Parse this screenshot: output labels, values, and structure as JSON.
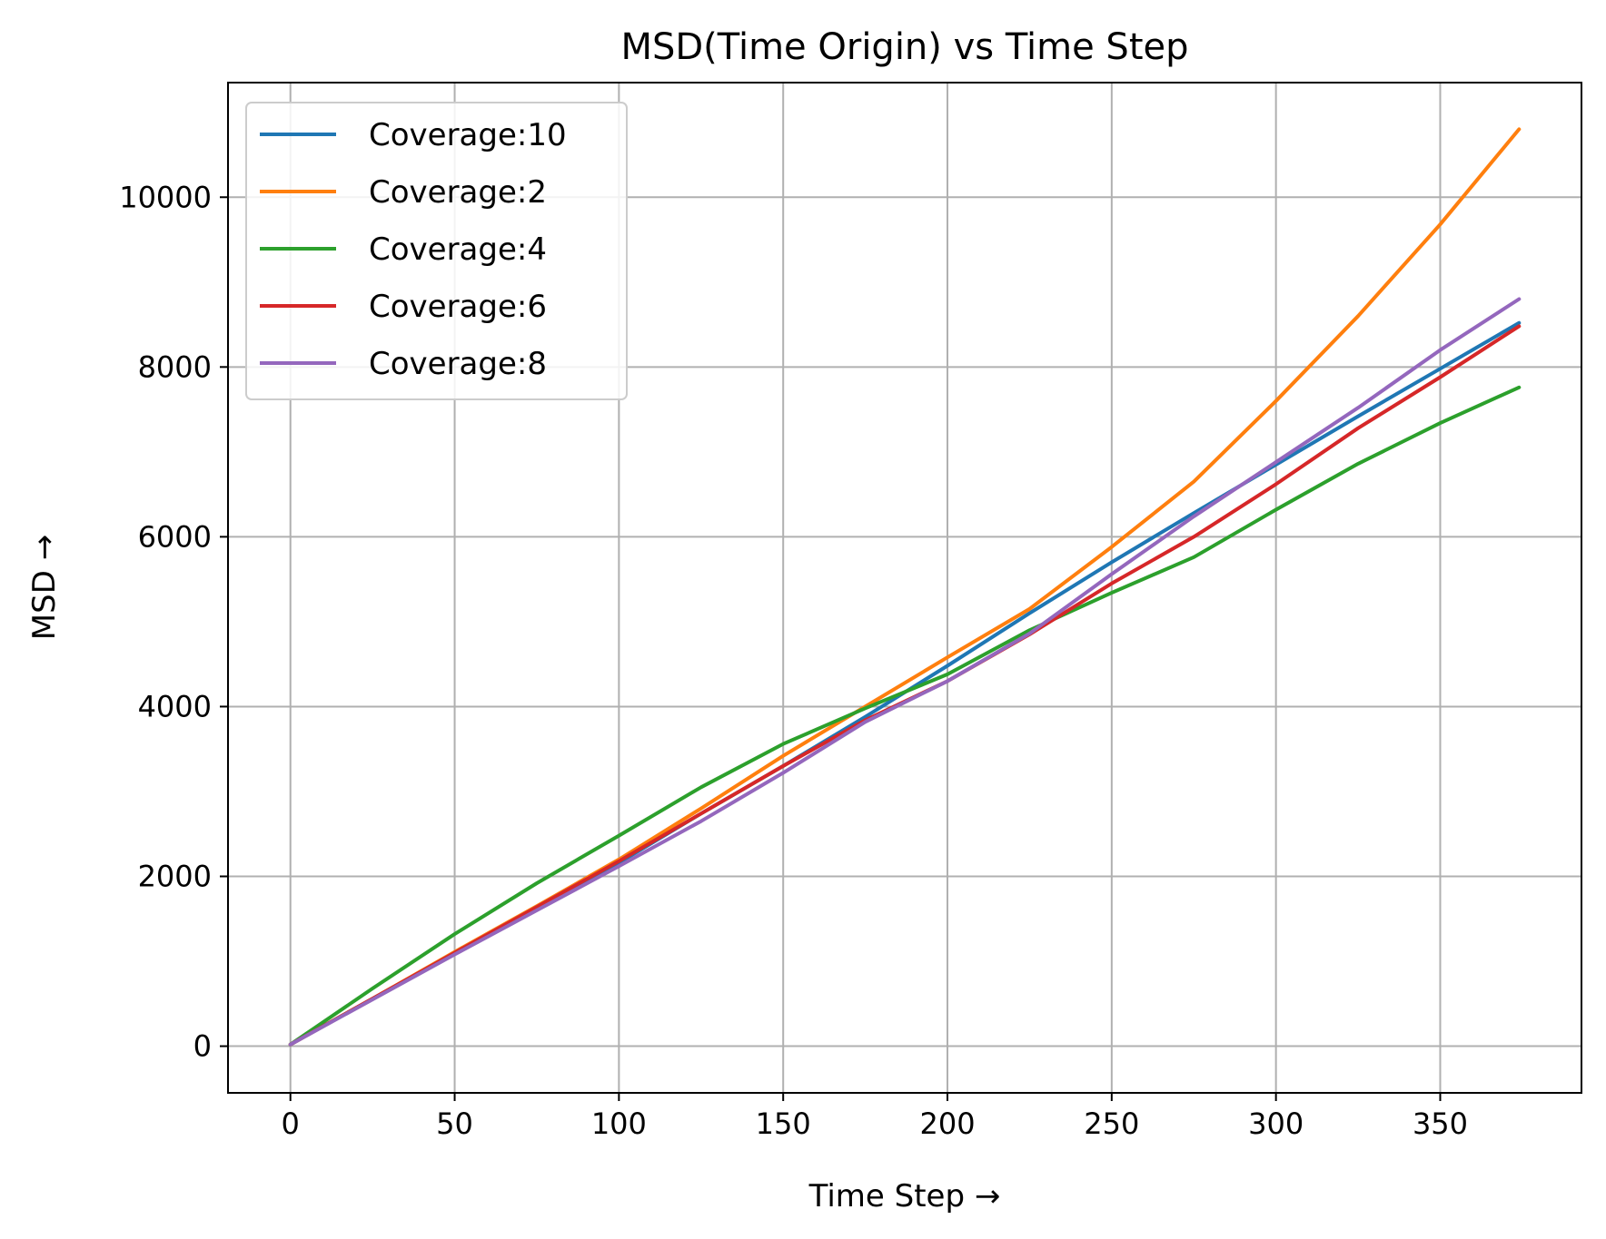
{
  "chart_data": {
    "type": "line",
    "title": "MSD(Time Origin) vs Time Step",
    "xlabel": "Time Step →",
    "ylabel": "MSD →",
    "xlim": [
      -19,
      393
    ],
    "ylim": [
      -550,
      11350
    ],
    "x_ticks": [
      0,
      50,
      100,
      150,
      200,
      250,
      300,
      350
    ],
    "y_ticks": [
      0,
      2000,
      4000,
      6000,
      8000,
      10000
    ],
    "grid": true,
    "legend_position": "top-left",
    "x": [
      0,
      25,
      50,
      75,
      100,
      125,
      150,
      175,
      200,
      225,
      250,
      275,
      300,
      325,
      350,
      374
    ],
    "series": [
      {
        "name": "Coverage:10",
        "color": "#1f77b4",
        "values": [
          20,
          560,
          1100,
          1640,
          2160,
          2740,
          3300,
          3880,
          4480,
          5100,
          5700,
          6280,
          6850,
          7420,
          7980,
          8520
        ]
      },
      {
        "name": "Coverage:2",
        "color": "#ff7f0e",
        "values": [
          20,
          560,
          1110,
          1650,
          2200,
          2800,
          3420,
          4000,
          4580,
          5150,
          5880,
          6650,
          7600,
          8600,
          9680,
          10800
        ]
      },
      {
        "name": "Coverage:4",
        "color": "#2ca02c",
        "values": [
          20,
          680,
          1320,
          1920,
          2480,
          3050,
          3560,
          3980,
          4380,
          4900,
          5340,
          5760,
          6320,
          6860,
          7340,
          7760
        ]
      },
      {
        "name": "Coverage:6",
        "color": "#d62728",
        "values": [
          20,
          560,
          1100,
          1640,
          2180,
          2740,
          3300,
          3840,
          4300,
          4850,
          5450,
          6000,
          6620,
          7280,
          7880,
          8480
        ]
      },
      {
        "name": "Coverage:8",
        "color": "#9467bd",
        "values": [
          20,
          550,
          1080,
          1600,
          2120,
          2650,
          3220,
          3820,
          4300,
          4860,
          5560,
          6240,
          6880,
          7520,
          8200,
          8800
        ]
      }
    ]
  }
}
